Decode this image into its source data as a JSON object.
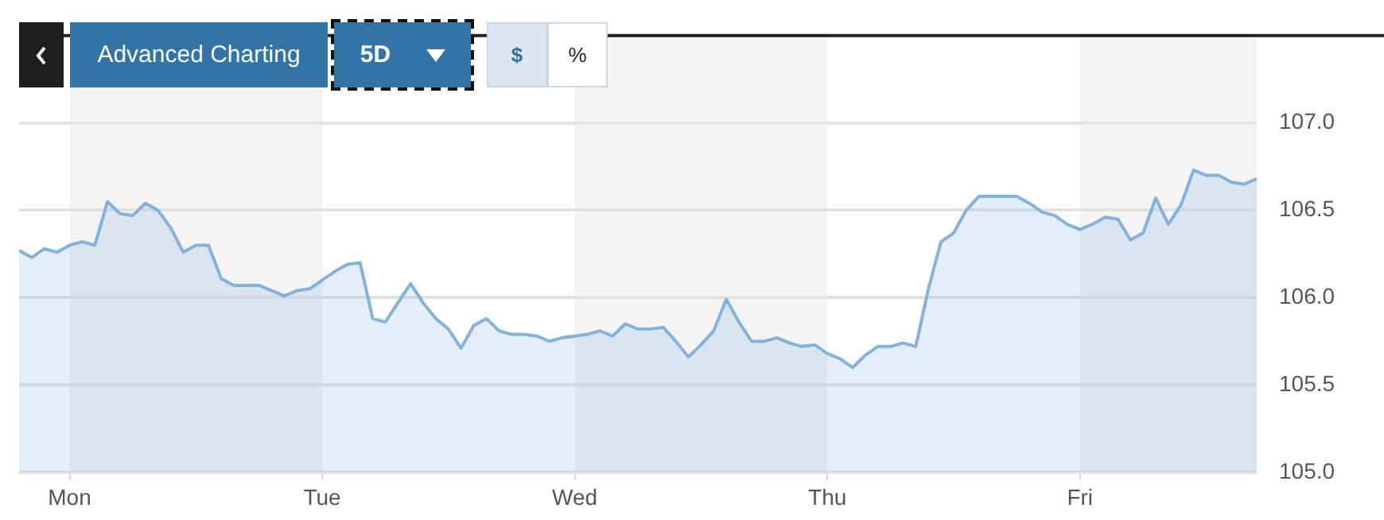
{
  "chart_data": {
    "type": "area",
    "annotations": [
      "Advanced Charting",
      "5D",
      "$",
      "%"
    ],
    "categories": [
      null,
      null,
      null,
      null,
      "Mon",
      null,
      null,
      null,
      null,
      null,
      null,
      null,
      null,
      null,
      null,
      null,
      null,
      null,
      null,
      null,
      null,
      null,
      null,
      null,
      "Tue",
      null,
      null,
      null,
      null,
      null,
      null,
      null,
      null,
      null,
      null,
      null,
      null,
      null,
      null,
      null,
      null,
      null,
      null,
      null,
      "Wed",
      null,
      null,
      null,
      null,
      null,
      null,
      null,
      null,
      null,
      null,
      null,
      null,
      null,
      null,
      null,
      null,
      null,
      null,
      null,
      "Thu",
      null,
      null,
      null,
      null,
      null,
      null,
      null,
      null,
      null,
      null,
      null,
      null,
      null,
      null,
      null,
      null,
      null,
      null,
      null,
      "Fri",
      null,
      null,
      null,
      null,
      null,
      null,
      null,
      null,
      null,
      null,
      null,
      null,
      null,
      null
    ],
    "series": [
      {
        "color": "#84b2de",
        "values": [
          106.27,
          106.23,
          106.28,
          106.26,
          106.3,
          106.32,
          106.3,
          106.55,
          106.48,
          106.47,
          106.54,
          106.5,
          106.4,
          106.26,
          106.3,
          106.3,
          106.11,
          106.07,
          106.07,
          106.07,
          106.04,
          106.01,
          106.04,
          106.05,
          106.1,
          106.15,
          106.19,
          106.2,
          105.88,
          105.86,
          105.97,
          106.08,
          105.97,
          105.88,
          105.82,
          105.71,
          105.84,
          105.88,
          105.81,
          105.79,
          105.79,
          105.78,
          105.75,
          105.77,
          105.78,
          105.79,
          105.81,
          105.78,
          105.85,
          105.82,
          105.82,
          105.83,
          105.75,
          105.66,
          105.73,
          105.81,
          105.99,
          105.86,
          105.75,
          105.75,
          105.77,
          105.74,
          105.72,
          105.73,
          105.68,
          105.65,
          105.6,
          105.67,
          105.72,
          105.72,
          105.74,
          105.72,
          106.05,
          106.32,
          106.37,
          106.5,
          106.58,
          106.58,
          106.58,
          106.58,
          106.54,
          106.49,
          106.47,
          106.42,
          106.39,
          106.42,
          106.46,
          106.45,
          106.33,
          106.37,
          106.57,
          106.42,
          106.53,
          106.73,
          106.7,
          106.7,
          106.66,
          106.65,
          106.68
        ]
      }
    ],
    "ylim": [
      105,
      107.5
    ],
    "yticks": [
      {
        "value": 105,
        "label": "105.0"
      },
      {
        "value": 105.5,
        "label": "105.5"
      },
      {
        "value": 106,
        "label": "106.0"
      },
      {
        "value": 106.5,
        "label": "106.5"
      },
      {
        "value": 107,
        "label": "107.0"
      }
    ],
    "grid": "y",
    "legend": false,
    "marker": "none",
    "line_style": "solid"
  }
}
